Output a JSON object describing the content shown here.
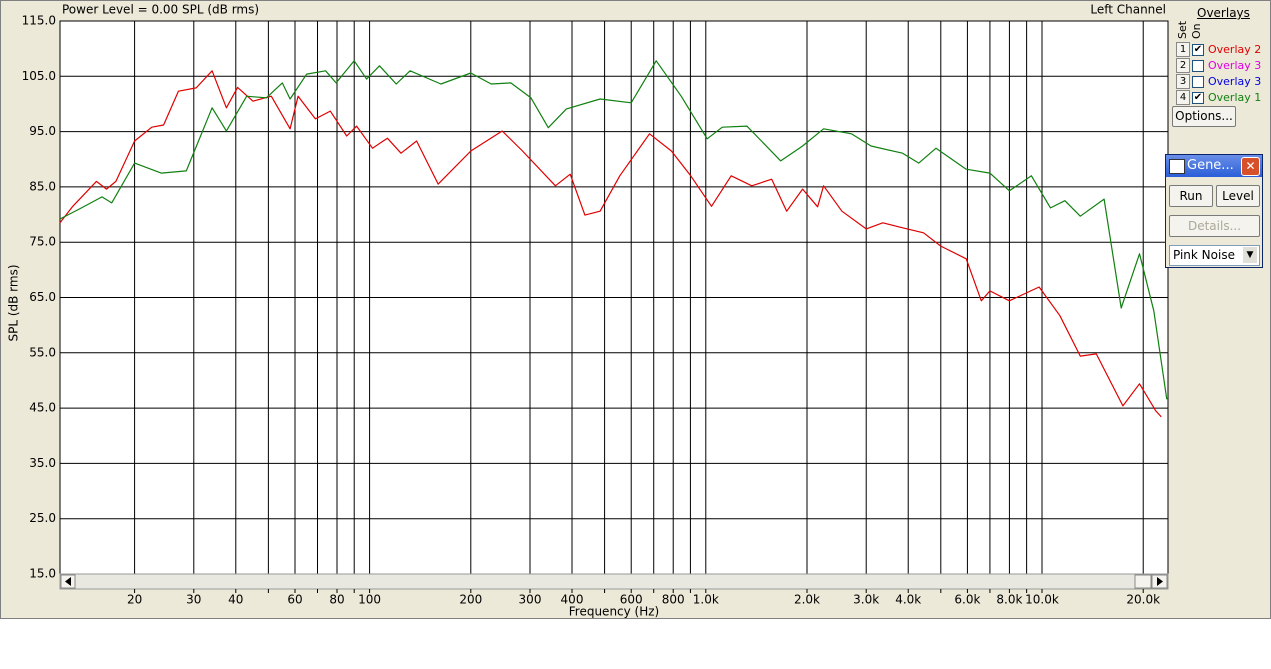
{
  "header": {
    "power_level": "Power Level = 0.00 SPL (dB rms)",
    "channel": "Left Channel"
  },
  "chart_data": {
    "type": "line",
    "xlabel": "Frequency (Hz)",
    "ylabel": "SPL (dB rms)",
    "xscale": "log",
    "grid": true,
    "xlim": [
      12,
      23700
    ],
    "ylim": [
      15,
      115
    ],
    "xticks": [
      20,
      30,
      40,
      60,
      80,
      100,
      200,
      300,
      400,
      600,
      800,
      {
        "value": 1000,
        "label": "1.0k"
      },
      {
        "value": 2000,
        "label": "2.0k"
      },
      {
        "value": 3000,
        "label": "3.0k"
      },
      {
        "value": 4000,
        "label": "4.0k"
      },
      {
        "value": 6000,
        "label": "6.0k"
      },
      {
        "value": 8000,
        "label": "8.0k"
      },
      {
        "value": 10000,
        "label": "10.0k"
      },
      {
        "value": 20000,
        "label": "20.0k"
      }
    ],
    "xminor": [
      50,
      70,
      90,
      500,
      700,
      900,
      5000,
      7000,
      9000
    ],
    "yticks": [
      {
        "value": 15,
        "label": "15.0"
      },
      {
        "value": 25,
        "label": "25.0"
      },
      {
        "value": 35,
        "label": "35.0"
      },
      {
        "value": 45,
        "label": "45.0"
      },
      {
        "value": 55,
        "label": "55.0"
      },
      {
        "value": 65,
        "label": "65.0"
      },
      {
        "value": 75,
        "label": "75.0"
      },
      {
        "value": 85,
        "label": "85.0"
      },
      {
        "value": 95,
        "label": "95.0"
      },
      {
        "value": 105,
        "label": "105.0"
      },
      {
        "value": 115,
        "label": "115.0"
      }
    ],
    "series": [
      {
        "color": "#e00000",
        "x": [
          12,
          13.1,
          15.4,
          16.5,
          17.6,
          20,
          22.5,
          24.4,
          27,
          30.5,
          34,
          37.5,
          40.5,
          45,
          51,
          58,
          61.3,
          69,
          76.4,
          85.5,
          91.5,
          102,
          113,
          124,
          138,
          160,
          200,
          248,
          285,
          357,
          395,
          437,
          485,
          555,
          680,
          790,
          902,
          1040,
          1190,
          1370,
          1570,
          1740,
          1940,
          2150,
          2240,
          2540,
          3000,
          3360,
          3850,
          4440,
          5000,
          5950,
          6600,
          7000,
          8000,
          9800,
          11300,
          13000,
          14500,
          17400,
          19500,
          21800,
          22640
        ],
        "values": [
          78.5,
          81.5,
          86,
          84.6,
          86,
          93.3,
          95.8,
          96.2,
          102.3,
          102.9,
          106,
          99.3,
          103,
          100.5,
          101.4,
          95.5,
          101.4,
          97.3,
          98.7,
          94.2,
          96,
          92,
          93.8,
          91.1,
          93.3,
          85.5,
          91.5,
          95.1,
          91.5,
          85.2,
          87.3,
          79.9,
          80.6,
          87,
          94.6,
          91.5,
          87,
          81.5,
          87,
          85.2,
          86.4,
          80.6,
          84.6,
          81.4,
          85.2,
          80.6,
          77.4,
          78.5,
          77.6,
          76.7,
          74.3,
          72,
          64.4,
          66.2,
          64.4,
          66.9,
          61.7,
          54.4,
          54.8,
          45.4,
          49.4,
          44.5,
          43.4
        ]
      },
      {
        "color": "#108010",
        "x": [
          12,
          13.9,
          16,
          17.1,
          20,
          24,
          28.5,
          34,
          37.5,
          43.1,
          49.3,
          55,
          58,
          65,
          74,
          79.5,
          90,
          98,
          107,
          120,
          132,
          163,
          200,
          230,
          263,
          302,
          340,
          385,
          485,
          600,
          712,
          845,
          1010,
          1120,
          1325,
          1670,
          1940,
          2240,
          2710,
          3100,
          3850,
          4300,
          4840,
          5950,
          7000,
          8000,
          9300,
          10600,
          11700,
          13000,
          15300,
          17200,
          19500,
          21500,
          23500
        ],
        "values": [
          79.2,
          81.2,
          83.2,
          82.1,
          89.3,
          87.5,
          87.9,
          99.3,
          95.1,
          101.4,
          101.1,
          103.8,
          100.9,
          105.4,
          106,
          103.8,
          107.8,
          104.5,
          106.9,
          103.6,
          106,
          103.6,
          105.6,
          103.6,
          103.8,
          101.1,
          95.7,
          99.1,
          100.9,
          100.2,
          107.8,
          101.4,
          93.7,
          95.8,
          96,
          89.7,
          92.4,
          95.5,
          94.6,
          92.4,
          91.1,
          89.3,
          92,
          88.2,
          87.5,
          84.3,
          87,
          81.2,
          82.5,
          79.7,
          82.8,
          63.1,
          72.9,
          62.6,
          46.6
        ]
      }
    ]
  },
  "overlays": {
    "set": "Set",
    "on": "On",
    "title": "Overlays",
    "options": "Options...",
    "rows": [
      {
        "set": "1",
        "checked": true,
        "name": "Overlay 2",
        "color": "#e00000"
      },
      {
        "set": "2",
        "checked": false,
        "name": "Overlay 3",
        "color": "#e000e0"
      },
      {
        "set": "3",
        "checked": false,
        "name": "Overlay 3",
        "color": "#0000e0"
      },
      {
        "set": "4",
        "checked": true,
        "name": "Overlay 1",
        "color": "#108010"
      }
    ]
  },
  "generator": {
    "title": "Gene...",
    "run": "Run",
    "level": "Level",
    "details": "Details...",
    "signal": "Pink Noise"
  }
}
